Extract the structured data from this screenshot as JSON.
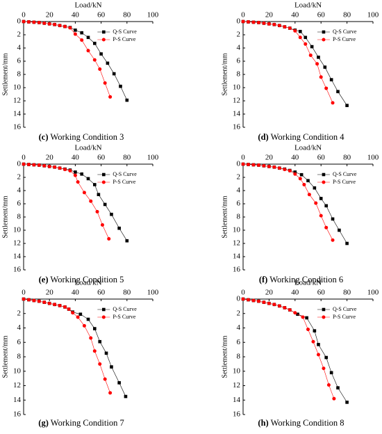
{
  "chart_data": [
    {
      "type": "line",
      "caption_label": "(c)",
      "caption": "Working Condition 3",
      "xlabel": "Load/kN",
      "ylabel": "Settlement/mm",
      "xlim": [
        0,
        100
      ],
      "ylim": [
        0,
        16
      ],
      "y_inverted": true,
      "xticks": [
        0,
        20,
        40,
        60,
        80,
        100
      ],
      "yticks": [
        0,
        2,
        4,
        6,
        8,
        10,
        12,
        14,
        16
      ],
      "series": [
        {
          "name": "Q-S Curve",
          "color": "#000000",
          "marker": "square",
          "x": [
            0,
            4,
            8,
            12,
            16,
            20,
            24,
            28,
            32,
            36,
            40,
            45,
            50,
            55,
            60,
            65,
            70,
            75,
            80
          ],
          "values": [
            0,
            0.05,
            0.1,
            0.15,
            0.25,
            0.35,
            0.45,
            0.6,
            0.75,
            0.9,
            1.3,
            1.7,
            2.4,
            3.3,
            4.9,
            6.3,
            7.9,
            9.8,
            11.9
          ]
        },
        {
          "name": "P-S Curve",
          "color": "#ff0000",
          "marker": "circle",
          "x": [
            0,
            4,
            8,
            12,
            16,
            20,
            24,
            28,
            32,
            36,
            40,
            45,
            50,
            55,
            59,
            63,
            67
          ],
          "values": [
            0,
            0.05,
            0.1,
            0.15,
            0.25,
            0.35,
            0.45,
            0.6,
            0.75,
            0.95,
            1.9,
            2.8,
            4.4,
            5.8,
            7.2,
            9.3,
            11.4
          ]
        }
      ]
    },
    {
      "type": "line",
      "caption_label": "(d)",
      "caption": "Working Condition 4",
      "xlabel": "Load/kN",
      "ylabel": "Settlement/mm",
      "xlim": [
        0,
        100
      ],
      "ylim": [
        0,
        16
      ],
      "y_inverted": true,
      "xticks": [
        0,
        20,
        40,
        60,
        80,
        100
      ],
      "yticks": [
        0,
        2,
        4,
        6,
        8,
        10,
        12,
        14,
        16
      ],
      "series": [
        {
          "name": "Q-S Curve",
          "color": "#000000",
          "marker": "square",
          "x": [
            0,
            4,
            8,
            12,
            16,
            20,
            24,
            28,
            32,
            36,
            40,
            44,
            48,
            53,
            58,
            63,
            68,
            73,
            80
          ],
          "values": [
            0,
            0.05,
            0.1,
            0.15,
            0.25,
            0.35,
            0.45,
            0.6,
            0.8,
            1.0,
            1.3,
            1.5,
            2.4,
            3.8,
            5.4,
            6.9,
            8.8,
            10.6,
            12.7
          ]
        },
        {
          "name": "P-S Curve",
          "color": "#ff0000",
          "marker": "circle",
          "x": [
            0,
            4,
            8,
            12,
            16,
            20,
            24,
            28,
            32,
            36,
            40,
            44,
            48,
            52,
            57,
            60,
            64,
            69
          ],
          "values": [
            0,
            0.05,
            0.1,
            0.15,
            0.25,
            0.35,
            0.45,
            0.6,
            0.8,
            1.0,
            1.4,
            2.4,
            3.4,
            5.1,
            6.4,
            8.4,
            10.1,
            12.3
          ]
        }
      ]
    },
    {
      "type": "line",
      "caption_label": "(e)",
      "caption": "Working Condition 5",
      "xlabel": "Load/kN",
      "ylabel": "Settlement/mm",
      "xlim": [
        0,
        100
      ],
      "ylim": [
        0,
        16
      ],
      "y_inverted": true,
      "xticks": [
        0,
        20,
        40,
        60,
        80,
        100
      ],
      "yticks": [
        0,
        2,
        4,
        6,
        8,
        10,
        12,
        14,
        16
      ],
      "series": [
        {
          "name": "Q-S Curve",
          "color": "#000000",
          "marker": "square",
          "x": [
            0,
            4,
            8,
            12,
            16,
            20,
            24,
            28,
            32,
            36,
            40,
            45,
            50,
            55,
            58,
            63,
            68,
            74,
            80
          ],
          "values": [
            0,
            0.05,
            0.1,
            0.15,
            0.25,
            0.35,
            0.45,
            0.6,
            0.75,
            0.9,
            1.2,
            1.5,
            2.2,
            3.1,
            4.6,
            6.1,
            7.6,
            9.7,
            11.6
          ]
        },
        {
          "name": "P-S Curve",
          "color": "#ff0000",
          "marker": "circle",
          "x": [
            0,
            4,
            8,
            12,
            16,
            20,
            24,
            28,
            32,
            36,
            40,
            42,
            47,
            52,
            57,
            61,
            66
          ],
          "values": [
            0,
            0.05,
            0.1,
            0.15,
            0.25,
            0.35,
            0.45,
            0.6,
            0.8,
            1.0,
            1.7,
            2.7,
            4.3,
            5.6,
            7.2,
            9.2,
            11.3
          ]
        }
      ]
    },
    {
      "type": "line",
      "caption_label": "(f)",
      "caption": "Working Condition 6",
      "xlabel": "Load/kN",
      "ylabel": "Settlement/mm",
      "xlim": [
        0,
        100
      ],
      "ylim": [
        0,
        16
      ],
      "y_inverted": true,
      "xticks": [
        0,
        20,
        40,
        60,
        80,
        100
      ],
      "yticks": [
        0,
        2,
        4,
        6,
        8,
        10,
        12,
        14,
        16
      ],
      "series": [
        {
          "name": "Q-S Curve",
          "color": "#000000",
          "marker": "square",
          "x": [
            0,
            4,
            8,
            12,
            16,
            20,
            24,
            28,
            32,
            36,
            40,
            45,
            50,
            55,
            60,
            64,
            69,
            74,
            80
          ],
          "values": [
            0,
            0.05,
            0.1,
            0.15,
            0.25,
            0.35,
            0.45,
            0.6,
            0.75,
            0.95,
            1.2,
            1.6,
            2.5,
            3.6,
            5.2,
            6.3,
            8.3,
            10.0,
            12.0
          ]
        },
        {
          "name": "P-S Curve",
          "color": "#ff0000",
          "marker": "circle",
          "x": [
            0,
            4,
            8,
            12,
            16,
            20,
            24,
            28,
            32,
            36,
            40,
            44,
            47,
            51,
            56,
            60,
            64,
            69
          ],
          "values": [
            0,
            0.05,
            0.1,
            0.15,
            0.25,
            0.35,
            0.45,
            0.6,
            0.8,
            1.0,
            1.5,
            2.2,
            3.1,
            4.6,
            5.9,
            7.8,
            9.6,
            11.5
          ]
        }
      ]
    },
    {
      "type": "line",
      "caption_label": "(g)",
      "caption": "Working Condition 7",
      "xlabel": "Load/kN",
      "ylabel": "Settlement/mm",
      "xlim": [
        0,
        100
      ],
      "ylim": [
        0,
        16
      ],
      "y_inverted": true,
      "xticks": [
        0,
        20,
        40,
        60,
        80,
        100
      ],
      "yticks": [
        2,
        4,
        6,
        8,
        10,
        12,
        14,
        16
      ],
      "series": [
        {
          "name": "Q-S Curve",
          "color": "#000000",
          "marker": "square",
          "x": [
            0,
            4,
            8,
            12,
            16,
            20,
            24,
            28,
            32,
            35,
            38,
            44,
            50,
            55,
            59,
            64,
            68,
            74,
            79
          ],
          "values": [
            0,
            0.1,
            0.2,
            0.3,
            0.45,
            0.6,
            0.75,
            0.9,
            1.1,
            1.4,
            1.8,
            2.1,
            2.8,
            4.1,
            5.9,
            7.5,
            9.4,
            11.6,
            13.5
          ]
        },
        {
          "name": "P-S Curve",
          "color": "#ff0000",
          "marker": "circle",
          "x": [
            0,
            4,
            8,
            12,
            16,
            20,
            24,
            28,
            32,
            35,
            38,
            42,
            47,
            52,
            55,
            59,
            63,
            67
          ],
          "values": [
            0,
            0.1,
            0.2,
            0.3,
            0.45,
            0.6,
            0.75,
            0.9,
            1.1,
            1.4,
            1.9,
            2.5,
            3.7,
            5.4,
            7.2,
            9.0,
            11.1,
            13.0
          ]
        }
      ]
    },
    {
      "type": "line",
      "caption_label": "(h)",
      "caption": "Working Condition 8",
      "xlabel": "Load/kN",
      "ylabel": "Settlement/mm",
      "xlim": [
        0,
        100
      ],
      "ylim": [
        0,
        16
      ],
      "y_inverted": true,
      "xticks": [
        0,
        20,
        40,
        60,
        80,
        100
      ],
      "yticks": [
        0,
        2,
        4,
        6,
        8,
        10,
        12,
        14,
        16
      ],
      "series": [
        {
          "name": "Q-S Curve",
          "color": "#000000",
          "marker": "square",
          "x": [
            0,
            4,
            8,
            12,
            16,
            20,
            24,
            28,
            32,
            36,
            42,
            49,
            55,
            58,
            64,
            68,
            73,
            80
          ],
          "values": [
            0,
            0.1,
            0.2,
            0.3,
            0.45,
            0.6,
            0.75,
            0.95,
            1.2,
            1.5,
            2.1,
            2.6,
            4.4,
            6.3,
            8.1,
            10.2,
            12.3,
            14.3
          ]
        },
        {
          "name": "P-S Curve",
          "color": "#ff0000",
          "marker": "circle",
          "x": [
            0,
            4,
            8,
            12,
            16,
            20,
            24,
            28,
            32,
            36,
            40,
            46,
            50,
            54,
            58,
            62,
            66,
            70
          ],
          "values": [
            0,
            0.1,
            0.2,
            0.3,
            0.45,
            0.6,
            0.75,
            0.95,
            1.2,
            1.5,
            1.9,
            2.5,
            4.2,
            5.9,
            7.7,
            9.6,
            11.9,
            13.8
          ]
        }
      ]
    }
  ]
}
